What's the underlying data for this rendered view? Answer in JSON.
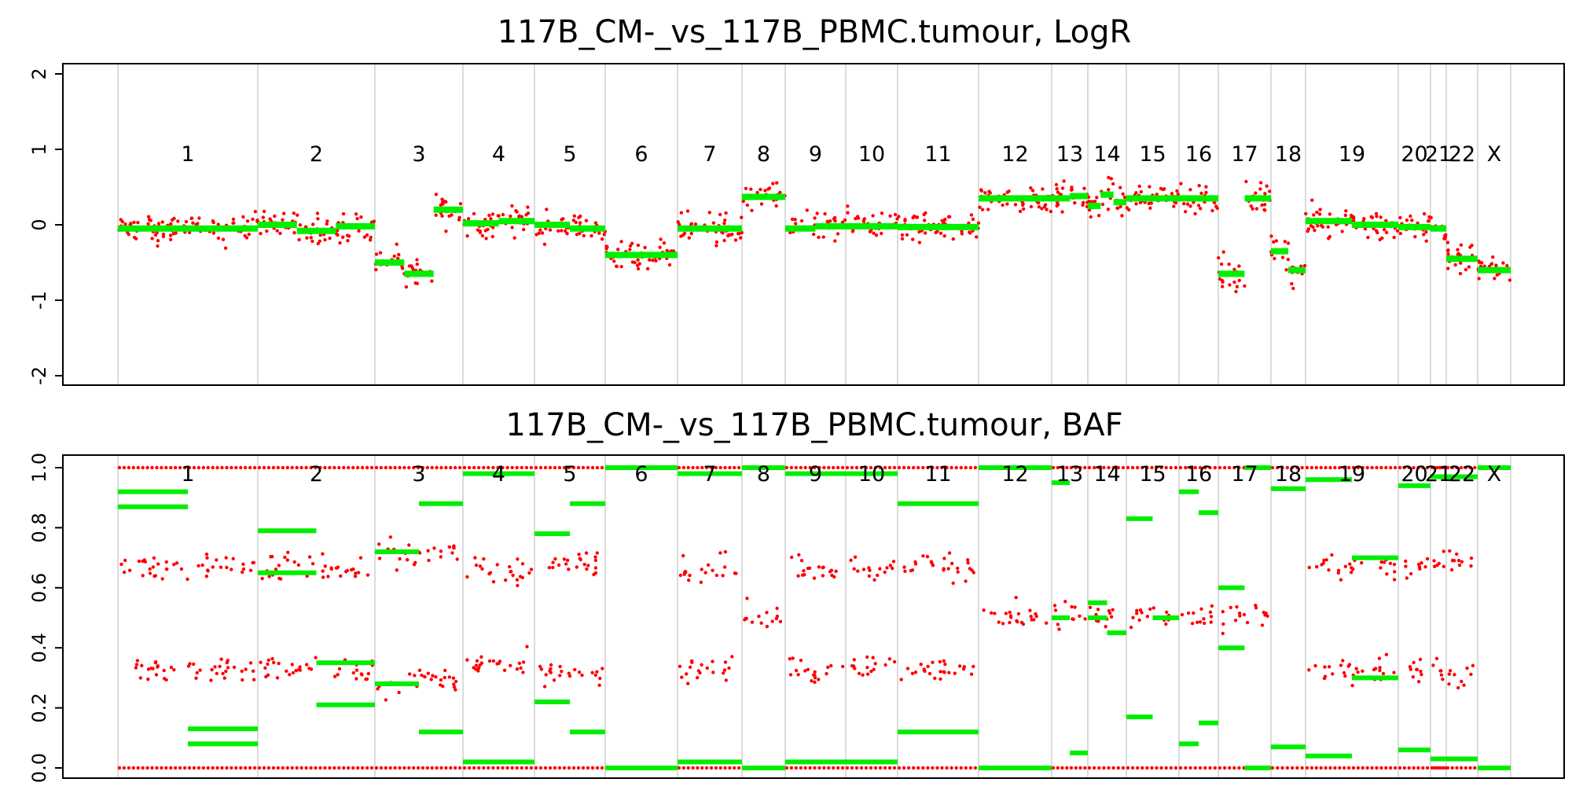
{
  "chart_data": [
    {
      "type": "scatter",
      "title": "117B_CM-_vs_117B_PBMC.tumour, LogR",
      "ylim": [
        -2,
        2
      ],
      "y_ticks": [
        -2,
        -1,
        0,
        1,
        2
      ],
      "grid": "vertical chromosome boundaries only",
      "point_color": "#ff0000",
      "segment_color": "#00ee00",
      "chromosomes": [
        {
          "label": "1",
          "segments": [
            -0.05
          ]
        },
        {
          "label": "2",
          "segments": [
            0.0,
            -0.08,
            -0.02
          ]
        },
        {
          "label": "3",
          "segments": [
            -0.5,
            -0.65,
            0.2
          ]
        },
        {
          "label": "4",
          "segments": [
            0.02,
            0.05
          ]
        },
        {
          "label": "5",
          "segments": [
            0.0,
            -0.05
          ]
        },
        {
          "label": "6",
          "segments": [
            -0.4
          ]
        },
        {
          "label": "7",
          "segments": [
            -0.05
          ]
        },
        {
          "label": "8",
          "segments": [
            0.37
          ]
        },
        {
          "label": "9",
          "segments": [
            -0.05,
            -0.02
          ]
        },
        {
          "label": "10",
          "segments": [
            -0.02
          ]
        },
        {
          "label": "11",
          "segments": [
            -0.03
          ]
        },
        {
          "label": "12",
          "segments": [
            0.35
          ]
        },
        {
          "label": "13",
          "segments": [
            0.35,
            0.38
          ]
        },
        {
          "label": "14",
          "segments": [
            0.25,
            0.4,
            0.3
          ]
        },
        {
          "label": "15",
          "segments": [
            0.35
          ]
        },
        {
          "label": "16",
          "segments": [
            0.35
          ]
        },
        {
          "label": "17",
          "segments": [
            -0.65,
            0.35
          ]
        },
        {
          "label": "18",
          "segments": [
            -0.35,
            -0.6
          ]
        },
        {
          "label": "19",
          "segments": [
            0.05,
            0.0
          ]
        },
        {
          "label": "20",
          "segments": [
            -0.03
          ]
        },
        {
          "label": "21",
          "segments": [
            -0.05
          ]
        },
        {
          "label": "22",
          "segments": [
            -0.45
          ]
        },
        {
          "label": "X",
          "segments": [
            -0.6
          ]
        }
      ]
    },
    {
      "type": "scatter",
      "title": "117B_CM-_vs_117B_PBMC.tumour, BAF",
      "ylim": [
        0,
        1
      ],
      "y_ticks": [
        "0.0",
        "0.2",
        "0.4",
        "0.6",
        "0.8",
        "1.0"
      ],
      "grid": "vertical chromosome boundaries only",
      "point_color": "#ff0000",
      "segment_color": "#00ee00",
      "chromosomes": [
        {
          "label": "1",
          "baf_bands": [
            0.33,
            0.67
          ],
          "segments": [
            0.92,
            0.87,
            0.13,
            0.08
          ]
        },
        {
          "label": "2",
          "baf_bands": [
            0.33,
            0.67
          ],
          "segments": [
            0.79,
            0.65,
            0.35,
            0.21
          ]
        },
        {
          "label": "3",
          "baf_bands": [
            0.28,
            0.72
          ],
          "segments": [
            0.72,
            0.28,
            0.88,
            0.12
          ]
        },
        {
          "label": "4",
          "baf_bands": [
            0.35,
            0.65
          ],
          "segments": [
            0.98,
            0.02
          ]
        },
        {
          "label": "5",
          "baf_bands": [
            0.32,
            0.68
          ],
          "segments": [
            0.78,
            0.22,
            0.88,
            0.12
          ]
        },
        {
          "label": "6",
          "baf_bands": [],
          "segments": [
            1.0,
            0.0
          ]
        },
        {
          "label": "7",
          "baf_bands": [
            0.33,
            0.67
          ],
          "segments": [
            0.98,
            0.02
          ]
        },
        {
          "label": "8",
          "baf_bands": [
            0.5
          ],
          "segments": [
            1.0,
            0.0
          ]
        },
        {
          "label": "9",
          "baf_bands": [
            0.33,
            0.67
          ],
          "segments": [
            0.98,
            0.02
          ]
        },
        {
          "label": "10",
          "baf_bands": [
            0.33,
            0.67
          ],
          "segments": [
            0.98,
            0.02
          ]
        },
        {
          "label": "11",
          "baf_bands": [
            0.33,
            0.67
          ],
          "segments": [
            0.88,
            0.12
          ]
        },
        {
          "label": "12",
          "baf_bands": [
            0.5
          ],
          "segments": [
            1.0,
            0.0
          ]
        },
        {
          "label": "13",
          "baf_bands": [
            0.5
          ],
          "segments": [
            0.5,
            0.95,
            0.05
          ]
        },
        {
          "label": "14",
          "baf_bands": [
            0.5
          ],
          "segments": [
            0.5,
            0.55,
            0.45
          ]
        },
        {
          "label": "15",
          "baf_bands": [
            0.5
          ],
          "segments": [
            0.83,
            0.17,
            0.5
          ]
        },
        {
          "label": "16",
          "baf_bands": [
            0.5
          ],
          "segments": [
            0.92,
            0.08,
            0.85,
            0.15
          ]
        },
        {
          "label": "17",
          "baf_bands": [
            0.5
          ],
          "segments": [
            0.6,
            0.4,
            1.0,
            0.0
          ]
        },
        {
          "label": "18",
          "baf_bands": [],
          "segments": [
            0.93,
            0.07
          ]
        },
        {
          "label": "19",
          "baf_bands": [
            0.33,
            0.67
          ],
          "segments": [
            0.96,
            0.04,
            0.7,
            0.3
          ]
        },
        {
          "label": "20",
          "baf_bands": [
            0.33,
            0.67
          ],
          "segments": [
            0.94,
            0.06
          ]
        },
        {
          "label": "21",
          "baf_bands": [
            0.33,
            0.67
          ],
          "segments": [
            0.97,
            0.03
          ]
        },
        {
          "label": "22",
          "baf_bands": [
            0.3,
            0.7
          ],
          "segments": [
            0.97,
            0.03
          ]
        },
        {
          "label": "X",
          "baf_bands": [],
          "segments": [
            1.0,
            0.0
          ]
        }
      ]
    }
  ]
}
